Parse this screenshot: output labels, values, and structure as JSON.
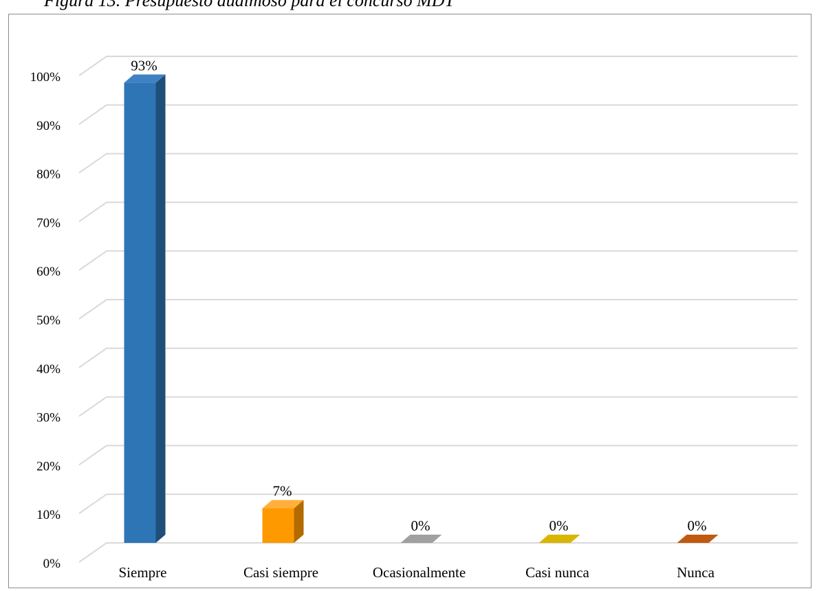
{
  "figure": {
    "caption": "Figura 13. Presupuesto dualmoso para el concurso MDT"
  },
  "chart_data": {
    "type": "bar",
    "categories": [
      "Siempre",
      "Casi siempre",
      "Ocasionalmente",
      "Casi nunca",
      "Nunca"
    ],
    "values": [
      93,
      7,
      0,
      0,
      0
    ],
    "data_labels": [
      "93%",
      "7%",
      "0%",
      "0%",
      "0%"
    ],
    "ylim": [
      0,
      100
    ],
    "yticks": [
      0,
      10,
      20,
      30,
      40,
      50,
      60,
      70,
      80,
      90,
      100
    ],
    "ytick_labels": [
      "0%",
      "10%",
      "20%",
      "30%",
      "40%",
      "50%",
      "60%",
      "70%",
      "80%",
      "90%",
      "100%"
    ],
    "grid": true,
    "style": "3d-column",
    "colors": {
      "front": [
        "#2e75b6",
        "#ff9900",
        "#8c8c8c",
        "#ccaa00",
        "#a84400"
      ],
      "side": [
        "#1f4e79",
        "#b36b00",
        "#5f5f5f",
        "#8f7700",
        "#6e2c00"
      ],
      "top": [
        "#3f82c4",
        "#ffb03b",
        "#a0a0a0",
        "#d9b600",
        "#c05a10"
      ],
      "grid": "#d9d9d9"
    }
  }
}
